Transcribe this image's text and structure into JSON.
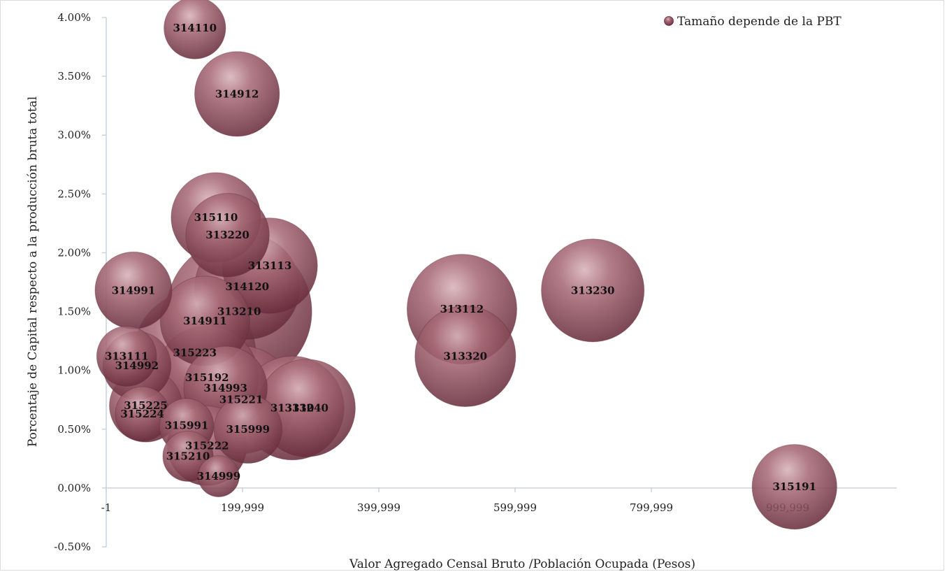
{
  "chart_data": {
    "type": "bubble",
    "xlabel": "Valor Agregado Censal Bruto /Población Ocupada (Pesos)",
    "ylabel": "Porcentaje de Capital respecto a la producción bruta total",
    "legend": {
      "label": "Tamaño depende de la PBT",
      "placement": "top-right"
    },
    "xlim": [
      -1,
      1159999
    ],
    "ylim": [
      -0.005,
      0.04
    ],
    "x_ticks": [
      {
        "value": -1,
        "label": "-1"
      },
      {
        "value": 199999,
        "label": "199,999"
      },
      {
        "value": 399999,
        "label": "399,999"
      },
      {
        "value": 599999,
        "label": "599,999"
      },
      {
        "value": 799999,
        "label": "799,999"
      },
      {
        "value": 999999,
        "label": "999,999"
      }
    ],
    "y_ticks": [
      {
        "value": -0.005,
        "label": "-0.50%"
      },
      {
        "value": 0.0,
        "label": "0.00%"
      },
      {
        "value": 0.005,
        "label": "0.50%"
      },
      {
        "value": 0.01,
        "label": "1.00%"
      },
      {
        "value": 0.015,
        "label": "1.50%"
      },
      {
        "value": 0.02,
        "label": "2.00%"
      },
      {
        "value": 0.025,
        "label": "2.50%"
      },
      {
        "value": 0.03,
        "label": "3.00%"
      },
      {
        "value": 0.035,
        "label": "3.50%"
      },
      {
        "value": 0.04,
        "label": "4.00%"
      }
    ],
    "bubble_color": "#8c4a5a",
    "grid": false,
    "points": [
      {
        "label": "315221",
        "x": 198000,
        "y": 0.0075,
        "size": 55
      },
      {
        "label": "313210",
        "x": 195000,
        "y": 0.015,
        "size": 100
      },
      {
        "label": "315223",
        "x": 130000,
        "y": 0.0115,
        "size": 70
      },
      {
        "label": "314120",
        "x": 207000,
        "y": 0.0171,
        "size": 52
      },
      {
        "label": "313112",
        "x": 522000,
        "y": 0.0152,
        "size": 57
      },
      {
        "label": "313320",
        "x": 527000,
        "y": 0.0112,
        "size": 48
      },
      {
        "label": "313230",
        "x": 714000,
        "y": 0.0168,
        "size": 50
      },
      {
        "label": "315191",
        "x": 1010000,
        "y": 0.0001,
        "size": 34
      },
      {
        "label": "313310",
        "x": 273000,
        "y": 0.0068,
        "size": 51
      },
      {
        "label": "313240",
        "x": 294000,
        "y": 0.0068,
        "size": 45
      },
      {
        "label": "315192",
        "x": 148000,
        "y": 0.0094,
        "size": 50
      },
      {
        "label": "314993",
        "x": 175000,
        "y": 0.0085,
        "size": 33
      },
      {
        "label": "314911",
        "x": 145000,
        "y": 0.0142,
        "size": 38
      },
      {
        "label": "313113",
        "x": 240000,
        "y": 0.0189,
        "size": 43
      },
      {
        "label": "313220",
        "x": 178000,
        "y": 0.0215,
        "size": 33
      },
      {
        "label": "315110",
        "x": 161000,
        "y": 0.023,
        "size": 38
      },
      {
        "label": "314912",
        "x": 192000,
        "y": 0.0335,
        "size": 34
      },
      {
        "label": "314110",
        "x": 130000,
        "y": 0.0391,
        "size": 18
      },
      {
        "label": "314991",
        "x": 40000,
        "y": 0.0168,
        "size": 28
      },
      {
        "label": "313111",
        "x": 30000,
        "y": 0.0112,
        "size": 17
      },
      {
        "label": "314992",
        "x": 45000,
        "y": 0.0104,
        "size": 22
      },
      {
        "label": "315225",
        "x": 58000,
        "y": 0.007,
        "size": 25
      },
      {
        "label": "315224",
        "x": 53000,
        "y": 0.0063,
        "size": 14
      },
      {
        "label": "315991",
        "x": 118000,
        "y": 0.0053,
        "size": 14
      },
      {
        "label": "315999",
        "x": 208000,
        "y": 0.005,
        "size": 22
      },
      {
        "label": "315222",
        "x": 148000,
        "y": 0.0036,
        "size": 30
      },
      {
        "label": "315210",
        "x": 120000,
        "y": 0.0027,
        "size": 12
      },
      {
        "label": "314999",
        "x": 165000,
        "y": 0.001,
        "size": 8
      }
    ]
  }
}
